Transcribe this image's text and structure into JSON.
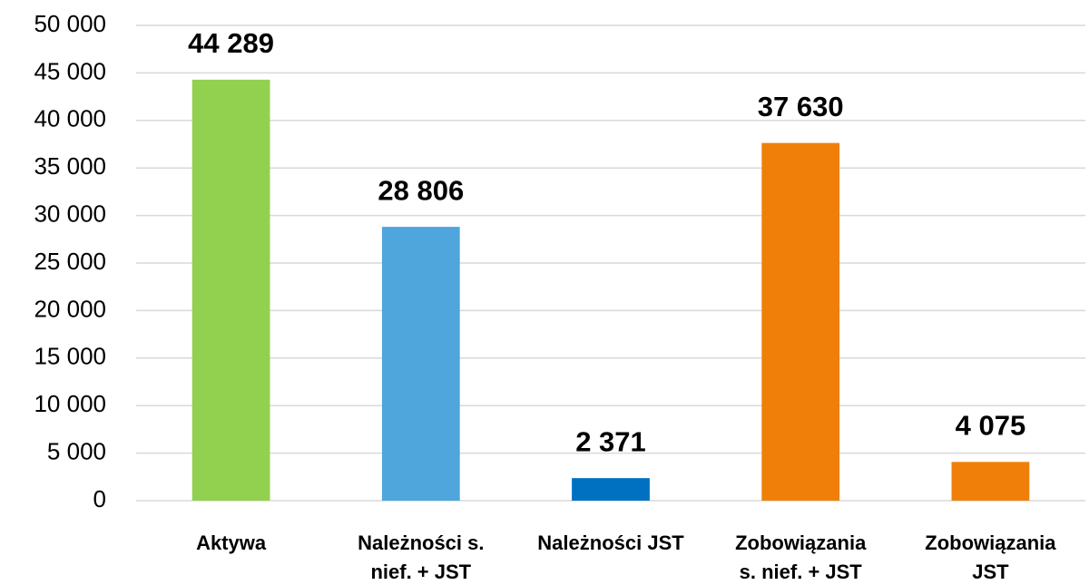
{
  "chart_data": {
    "type": "bar",
    "categories": [
      "Aktywa",
      "Należności s.\nnief. + JST",
      "Należności JST",
      "Zobowiązania\ns. nief. + JST",
      "Zobowiązania\nJST"
    ],
    "values": [
      44289,
      28806,
      2371,
      37630,
      4075
    ],
    "value_labels": [
      "44 289",
      "28 806",
      "2 371",
      "37 630",
      "4 075"
    ],
    "colors": [
      "#92d050",
      "#4ea6dc",
      "#0070c0",
      "#f07f09",
      "#f07f09"
    ],
    "ylim": [
      0,
      50000
    ],
    "yticks": [
      0,
      {
        "value": 5000,
        "label": "5 000"
      },
      {
        "value": 10000,
        "label": "10 000"
      },
      {
        "value": 15000,
        "label": "15 000"
      },
      {
        "value": 20000,
        "label": "20 000"
      },
      {
        "value": 25000,
        "label": "25 000"
      },
      {
        "value": 30000,
        "label": "30 000"
      },
      {
        "value": 35000,
        "label": "35 000"
      },
      {
        "value": 40000,
        "label": "40 000"
      },
      {
        "value": 45000,
        "label": "45 000"
      },
      {
        "value": 50000,
        "label": "50 000"
      }
    ],
    "grid": true
  }
}
